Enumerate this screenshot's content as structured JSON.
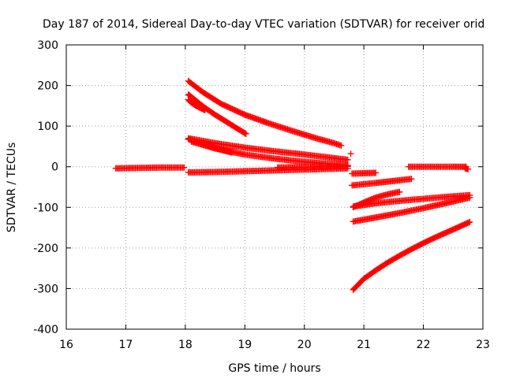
{
  "chart_data": {
    "type": "scatter",
    "title": "Day 187 of 2014, Sidereal Day-to-day VTEC variation (SDTVAR) for receiver orid",
    "xlabel": "GPS time / hours",
    "ylabel": "SDTVAR / TECUs",
    "xlim": [
      16,
      23
    ],
    "ylim": [
      -400,
      300
    ],
    "x_ticks": [
      "16",
      "17",
      "18",
      "19",
      "20",
      "21",
      "22",
      "23"
    ],
    "y_ticks": [
      "300",
      "200",
      "100",
      "0",
      "-100",
      "-200",
      "-300",
      "-400"
    ],
    "grid": true,
    "legend": "none",
    "marker": "plus",
    "color": "#ff0000",
    "series": [
      {
        "x": [
          16.83,
          17.2,
          17.6,
          17.98
        ],
        "y": [
          -4,
          -3,
          -2,
          -2
        ]
      },
      {
        "x": [
          18.05,
          18.5,
          19.0,
          19.5,
          20.0,
          20.5,
          20.73
        ],
        "y": [
          -14,
          -13,
          -11,
          -9,
          -7,
          -5,
          -4
        ]
      },
      {
        "x": [
          18.05,
          18.3,
          18.6,
          19.0,
          19.4,
          19.8,
          20.2,
          20.5,
          20.62
        ],
        "y": [
          211,
          183,
          155,
          128,
          107,
          88,
          70,
          58,
          52
        ]
      },
      {
        "x": [
          18.05,
          18.15,
          18.25,
          18.35,
          18.5,
          18.7,
          18.85,
          19.02
        ],
        "y": [
          178,
          166,
          154,
          143,
          128,
          110,
          96,
          81
        ]
      },
      {
        "x": [
          18.05,
          18.1,
          18.17,
          18.25,
          18.33
        ],
        "y": [
          165,
          158,
          151,
          145,
          139
        ]
      },
      {
        "x": [
          18.05,
          18.5,
          19.0,
          19.5,
          20.0,
          20.4,
          20.73
        ],
        "y": [
          70,
          58,
          47,
          38,
          30,
          23,
          17
        ]
      },
      {
        "x": [
          18.05,
          18.25,
          18.45,
          18.65,
          18.78
        ],
        "y": [
          68,
          58,
          49,
          40,
          35
        ]
      },
      {
        "x": [
          18.1,
          18.5,
          19.0,
          19.5,
          20.0,
          20.5,
          20.73
        ],
        "y": [
          62,
          45,
          30,
          20,
          12,
          6,
          3
        ]
      },
      {
        "x": [
          19.55,
          20.0,
          20.4,
          20.73
        ],
        "y": [
          -2,
          -1,
          0,
          1
        ]
      },
      {
        "x": [
          20.78
        ],
        "y": [
          32
        ]
      },
      {
        "x": [
          20.8,
          21.0,
          21.2
        ],
        "y": [
          -17,
          -16,
          -15
        ]
      },
      {
        "x": [
          20.8,
          21.2,
          21.5,
          21.8
        ],
        "y": [
          -46,
          -40,
          -35,
          -30
        ]
      },
      {
        "x": [
          21.75,
          22.1,
          22.5,
          22.72
        ],
        "y": [
          0,
          0,
          0,
          0
        ]
      },
      {
        "x": [
          22.7,
          22.75
        ],
        "y": [
          -4,
          -6
        ]
      },
      {
        "x": [
          20.82,
          21.0,
          21.2,
          21.4,
          21.6
        ],
        "y": [
          -100,
          -88,
          -76,
          -68,
          -62
        ]
      },
      {
        "x": [
          20.82,
          21.2,
          21.6,
          22.0,
          22.4,
          22.78
        ],
        "y": [
          -98,
          -90,
          -84,
          -79,
          -74,
          -70
        ]
      },
      {
        "x": [
          20.82,
          21.2,
          21.6,
          22.0,
          22.4,
          22.78
        ],
        "y": [
          -135,
          -125,
          -114,
          -102,
          -89,
          -76
        ]
      },
      {
        "x": [
          20.82,
          21.0,
          21.2,
          21.4,
          21.6,
          21.8,
          22.0,
          22.2,
          22.4,
          22.6,
          22.78
        ],
        "y": [
          -303,
          -276,
          -255,
          -236,
          -219,
          -203,
          -188,
          -174,
          -161,
          -148,
          -136
        ]
      }
    ]
  }
}
